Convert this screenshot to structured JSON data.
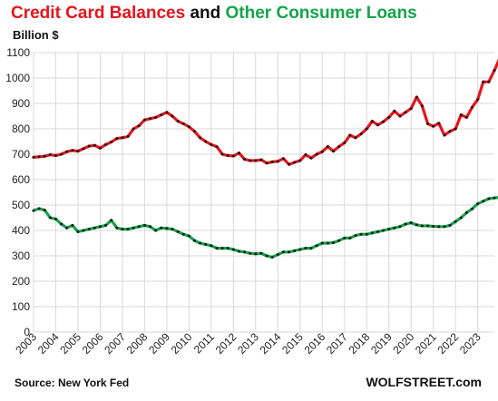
{
  "title": {
    "part1": "Credit Card Balances",
    "part2": " and ",
    "part3": "Other Consumer Loans"
  },
  "unit_label": "Billion $",
  "source": "Source: New York Fed",
  "brand": "WOLFSTREET.com",
  "colors": {
    "credit_card": "#e8141b",
    "other_loans": "#12a54a",
    "marker": "#1a1a1a",
    "grid": "#d9d9d9"
  },
  "chart_data": {
    "type": "line",
    "title": "Credit Card Balances and Other Consumer Loans",
    "ylabel": "Billion $",
    "ylim": [
      0,
      1100
    ],
    "yticks": [
      0,
      100,
      200,
      300,
      400,
      500,
      600,
      700,
      800,
      900,
      1000,
      1100
    ],
    "xlim": [
      2003,
      2023.75
    ],
    "xticks": [
      "2003",
      "2004",
      "2005",
      "2006",
      "2007",
      "2008",
      "2009",
      "2010",
      "2011",
      "2012",
      "2013",
      "2014",
      "2015",
      "2016",
      "2017",
      "2018",
      "2019",
      "2020",
      "2021",
      "2022",
      "2023"
    ],
    "grid": true,
    "x_start": 2003,
    "x_step": 0.25,
    "series": [
      {
        "name": "Credit Card Balances",
        "values": [
          688,
          690,
          692,
          698,
          695,
          700,
          710,
          715,
          712,
          722,
          732,
          735,
          724,
          738,
          748,
          762,
          765,
          770,
          800,
          812,
          835,
          840,
          845,
          855,
          865,
          850,
          830,
          820,
          808,
          790,
          765,
          750,
          738,
          730,
          700,
          695,
          693,
          705,
          680,
          675,
          675,
          678,
          665,
          670,
          672,
          683,
          660,
          668,
          675,
          698,
          685,
          700,
          710,
          730,
          712,
          730,
          745,
          775,
          765,
          780,
          800,
          830,
          815,
          828,
          845,
          870,
          850,
          865,
          880,
          925,
          890,
          820,
          810,
          822,
          775,
          790,
          800,
          855,
          845,
          885,
          915,
          985,
          985,
          1030,
          1080
        ]
      },
      {
        "name": "Other Consumer Loans",
        "values": [
          478,
          486,
          480,
          450,
          445,
          425,
          410,
          420,
          395,
          400,
          405,
          410,
          415,
          420,
          440,
          410,
          405,
          405,
          410,
          415,
          420,
          415,
          400,
          410,
          408,
          405,
          395,
          385,
          378,
          360,
          350,
          345,
          340,
          330,
          330,
          330,
          325,
          318,
          315,
          310,
          308,
          310,
          300,
          295,
          305,
          315,
          315,
          320,
          325,
          330,
          330,
          340,
          350,
          350,
          352,
          360,
          370,
          370,
          380,
          385,
          385,
          390,
          395,
          400,
          405,
          410,
          415,
          425,
          430,
          422,
          418,
          418,
          416,
          415,
          415,
          420,
          435,
          450,
          470,
          485,
          505,
          515,
          525,
          528,
          530
        ]
      }
    ]
  }
}
